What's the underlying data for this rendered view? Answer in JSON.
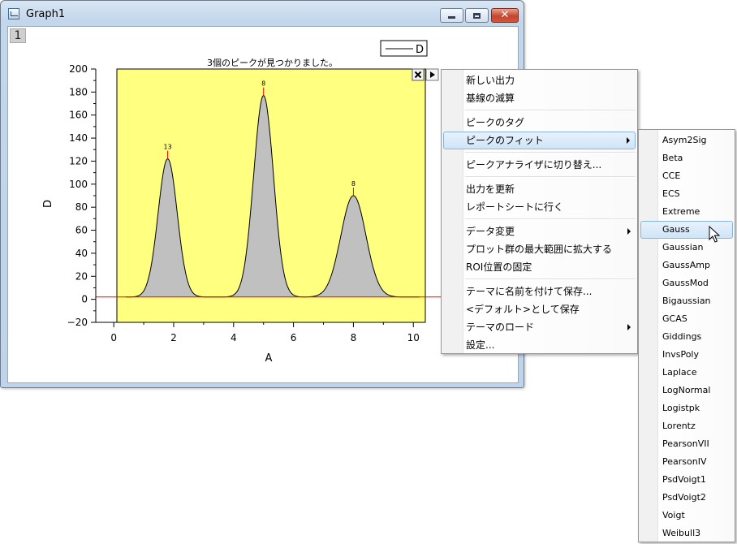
{
  "window": {
    "title": "Graph1",
    "layer_label": "1",
    "icon": "graph-window-icon"
  },
  "graph": {
    "note_text": "3個のピークが見つかりました。",
    "legend_label": "D",
    "peak_label_1": "13",
    "peak_label_2": "8",
    "peak_label_3": "8",
    "colors": {
      "plot_background": "#ffff80",
      "peak_fill": "#c0c0c0",
      "baseline": "#ff0000"
    }
  },
  "chart_data": {
    "type": "area",
    "title": "",
    "xlabel": "A",
    "ylabel": "D",
    "xlim": [
      -0.6,
      10.4
    ],
    "ylim": [
      -20,
      200
    ],
    "x_ticks": [
      0,
      2,
      4,
      6,
      8,
      10
    ],
    "x_tick_labels": [
      "0",
      "2",
      "4",
      "6",
      "8",
      "10"
    ],
    "y_ticks": [
      -20,
      0,
      20,
      40,
      60,
      80,
      100,
      120,
      140,
      160,
      180,
      200
    ],
    "y_tick_labels": [
      "−20",
      "0",
      "20",
      "40",
      "60",
      "80",
      "100",
      "120",
      "140",
      "160",
      "180",
      "200"
    ],
    "baseline": 2,
    "grid": false,
    "legend": "top-right",
    "series": [
      {
        "name": "D",
        "peaks": [
          {
            "center": 1.8,
            "height": 120,
            "width": 0.32
          },
          {
            "center": 5.0,
            "height": 175,
            "width": 0.33
          },
          {
            "center": 8.0,
            "height": 88,
            "width": 0.42
          }
        ]
      }
    ]
  },
  "gadget": {
    "close_icon": "close-x-icon",
    "menu_icon": "triangle-right-icon"
  },
  "menu": {
    "items": [
      {
        "label": "新しい出力"
      },
      {
        "label": "基線の減算"
      },
      {
        "label": "ピークのタグ"
      },
      {
        "label": "ピークのフィット"
      },
      {
        "label": "ピークアナライザに切り替え..."
      },
      {
        "label": "出力を更新"
      },
      {
        "label": "レポートシートに行く"
      },
      {
        "label": "データ変更"
      },
      {
        "label": "プロット群の最大範囲に拡大する"
      },
      {
        "label": "ROI位置の固定"
      },
      {
        "label": "テーマに名前を付けて保存..."
      },
      {
        "label": "<デフォルト>として保存"
      },
      {
        "label": "テーマのロード"
      },
      {
        "label": "設定..."
      }
    ]
  },
  "submenu": {
    "items": [
      {
        "label": "Asym2Sig"
      },
      {
        "label": "Beta"
      },
      {
        "label": "CCE"
      },
      {
        "label": "ECS"
      },
      {
        "label": "Extreme"
      },
      {
        "label": "Gauss"
      },
      {
        "label": "Gaussian"
      },
      {
        "label": "GaussAmp"
      },
      {
        "label": "GaussMod"
      },
      {
        "label": "Bigaussian"
      },
      {
        "label": "GCAS"
      },
      {
        "label": "Giddings"
      },
      {
        "label": "InvsPoly"
      },
      {
        "label": "Laplace"
      },
      {
        "label": "LogNormal"
      },
      {
        "label": "Logistpk"
      },
      {
        "label": "Lorentz"
      },
      {
        "label": "PearsonVII"
      },
      {
        "label": "PearsonIV"
      },
      {
        "label": "PsdVoigt1"
      },
      {
        "label": "PsdVoigt2"
      },
      {
        "label": "Voigt"
      },
      {
        "label": "Weibull3"
      }
    ]
  }
}
